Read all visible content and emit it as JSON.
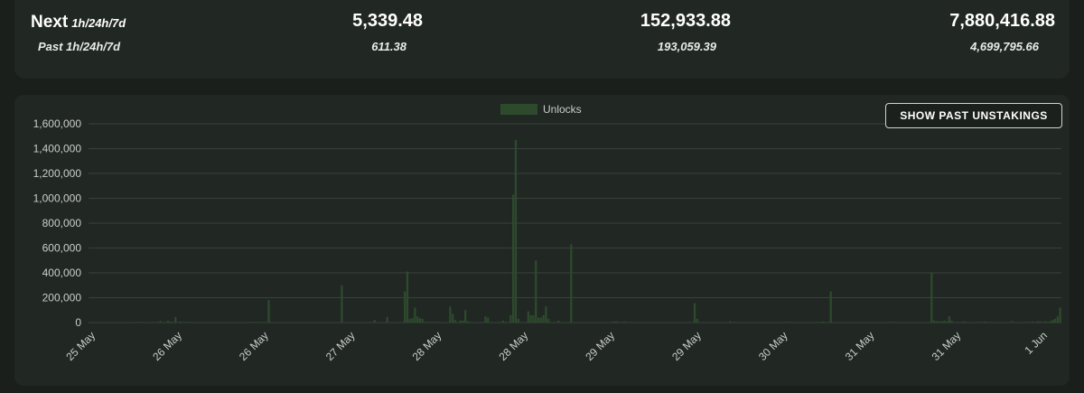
{
  "stats": {
    "next_label": "Next",
    "next_range": "1h/24h/7d",
    "past_label": "Past 1h/24h/7d",
    "columns": [
      {
        "next": "5,339.48",
        "past": "611.38"
      },
      {
        "next": "152,933.88",
        "past": "193,059.39"
      },
      {
        "next": "7,880,416.88",
        "past": "4,699,795.66"
      }
    ]
  },
  "toggle_button": "SHOW PAST UNSTAKINGS",
  "colors": {
    "bar": "#2d4a2d",
    "grid": "#3a403c",
    "axis_text": "#c9cec9"
  },
  "chart_data": {
    "type": "bar",
    "title": "",
    "xlabel": "",
    "ylabel": "",
    "legend": [
      "Unlocks"
    ],
    "legend_position": "top-center",
    "ylim": [
      0,
      1600000
    ],
    "yticks": [
      "0",
      "200,000",
      "400,000",
      "600,000",
      "800,000",
      "1,000,000",
      "1,200,000",
      "1,400,000",
      "1,600,000"
    ],
    "xticks": [
      "25 May",
      "26 May",
      "26 May",
      "27 May",
      "28 May",
      "28 May",
      "29 May",
      "29 May",
      "30 May",
      "31 May",
      "31 May",
      "1 Jun"
    ],
    "series": [
      {
        "name": "Unlocks",
        "values": [
          0,
          0,
          0,
          0,
          0,
          0,
          0,
          0,
          0,
          0,
          0,
          0,
          0,
          0,
          0,
          0,
          3000,
          0,
          0,
          0,
          0,
          5000,
          0,
          0,
          0,
          0,
          0,
          0,
          12000,
          0,
          0,
          15000,
          8000,
          0,
          45000,
          0,
          8000,
          0,
          0,
          5000,
          0,
          0,
          0,
          0,
          0,
          0,
          0,
          0,
          0,
          0,
          0,
          0,
          0,
          0,
          0,
          0,
          0,
          0,
          0,
          0,
          0,
          0,
          0,
          0,
          3000,
          0,
          5000,
          0,
          0,
          0,
          0,
          180000,
          0,
          0,
          0,
          0,
          0,
          0,
          0,
          0,
          0,
          0,
          0,
          0,
          0,
          0,
          0,
          0,
          0,
          0,
          0,
          0,
          0,
          0,
          0,
          0,
          0,
          0,
          0,
          0,
          300000,
          0,
          0,
          0,
          0,
          0,
          0,
          0,
          0,
          0,
          0,
          0,
          0,
          20000,
          0,
          0,
          0,
          0,
          45000,
          0,
          0,
          0,
          0,
          0,
          0,
          250000,
          410000,
          30000,
          35000,
          120000,
          50000,
          35000,
          30000,
          0,
          5000,
          0,
          5000,
          0,
          0,
          0,
          0,
          0,
          0,
          130000,
          70000,
          20000,
          0,
          15000,
          15000,
          100000,
          10000,
          5000,
          0,
          0,
          0,
          0,
          0,
          50000,
          40000,
          0,
          0,
          0,
          0,
          0,
          15000,
          0,
          0,
          60000,
          1030000,
          1470000,
          30000,
          0,
          0,
          0,
          90000,
          60000,
          60000,
          500000,
          40000,
          40000,
          60000,
          130000,
          30000,
          0,
          0,
          0,
          15000,
          0,
          0,
          0,
          0,
          630000,
          0,
          0,
          0,
          0,
          0,
          0,
          0,
          0,
          0,
          0,
          0,
          0,
          0,
          0,
          0,
          0,
          10000,
          10000,
          0,
          0,
          8000,
          0,
          0,
          0,
          0,
          0,
          0,
          0,
          0,
          0,
          0,
          0,
          0,
          0,
          0,
          0,
          0,
          0,
          0,
          0,
          0,
          0,
          0,
          0,
          0,
          0,
          0,
          0,
          155000,
          30000,
          0,
          0,
          0,
          0,
          0,
          0,
          0,
          0,
          0,
          0,
          0,
          0,
          10000,
          0,
          0,
          0,
          0,
          0,
          0,
          0,
          0,
          0,
          0,
          0,
          0,
          3000,
          0,
          0,
          0,
          0,
          0,
          0,
          0,
          0,
          0,
          5000,
          0,
          0,
          0,
          0,
          0,
          0,
          0,
          0,
          0,
          0,
          0,
          0,
          0,
          8000,
          0,
          0,
          250000,
          0,
          0,
          0,
          0,
          0,
          0,
          0,
          0,
          0,
          0,
          0,
          0,
          0,
          0,
          0,
          0,
          0,
          0,
          0,
          0,
          0,
          0,
          0,
          0,
          5000,
          0,
          0,
          0,
          0,
          0,
          0,
          0,
          0,
          0,
          0,
          0,
          0,
          0,
          0,
          400000,
          15000,
          10000,
          10000,
          10000,
          15000,
          10000,
          50000,
          15000,
          0,
          0,
          0,
          0,
          10000,
          0,
          0,
          0,
          0,
          0,
          0,
          0,
          8000,
          0,
          0,
          0,
          0,
          0,
          0,
          0,
          0,
          0,
          0,
          12000,
          0,
          0,
          0,
          0,
          0,
          0,
          0,
          8000,
          5000,
          10000,
          10000,
          0,
          10000,
          5000,
          10000,
          20000,
          30000,
          50000,
          120000
        ]
      }
    ]
  }
}
